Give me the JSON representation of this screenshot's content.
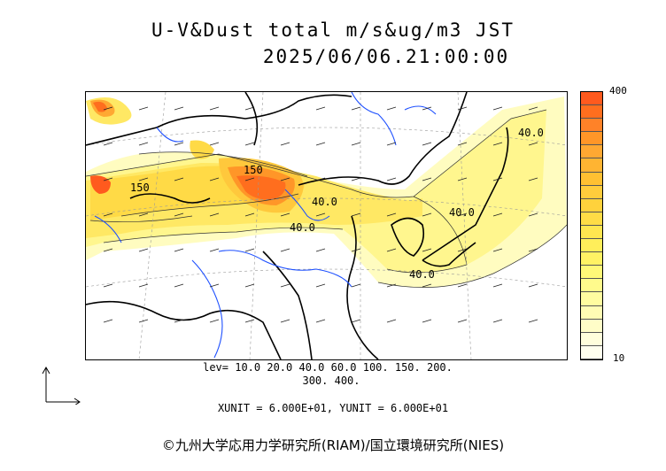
{
  "title": {
    "line1": "U-V&Dust total m/s&ug/m3 JST",
    "line2": "2025/06/06.21:00:00"
  },
  "colorbar": {
    "max_label": "400",
    "min_label": "10",
    "colors": [
      "#ff5a1e",
      "#ff6e1e",
      "#ff8228",
      "#ff9628",
      "#ffa832",
      "#ffb432",
      "#ffc032",
      "#ffcc3c",
      "#ffd23c",
      "#ffdc46",
      "#ffe650",
      "#ffee5a",
      "#fff264",
      "#fff878",
      "#fffa8c",
      "#fffca0",
      "#fffcb4",
      "#fffdc8",
      "#fffedc",
      "#ffffee"
    ]
  },
  "legend": {
    "levels_line1": "lev= 10.0 20.0 40.0 60.0 100. 150. 200.",
    "levels_line2": "300. 400.",
    "units": "XUNIT = 6.000E+01, YUNIT = 6.000E+01"
  },
  "contour_labels": {
    "l150a": "150",
    "l150b": "150",
    "l40a": "40.0",
    "l40b": "40.0",
    "l40c": "40.0",
    "l40d": "40.0",
    "l40e": "40.0"
  },
  "copyright": "©九州大学応用力学研究所(RIAM)/国立環境研究所(NIES)",
  "map_colors": {
    "coast": "#000000",
    "rivers": "#1e50ff",
    "grid": "#999999",
    "arrows": "#222222"
  }
}
